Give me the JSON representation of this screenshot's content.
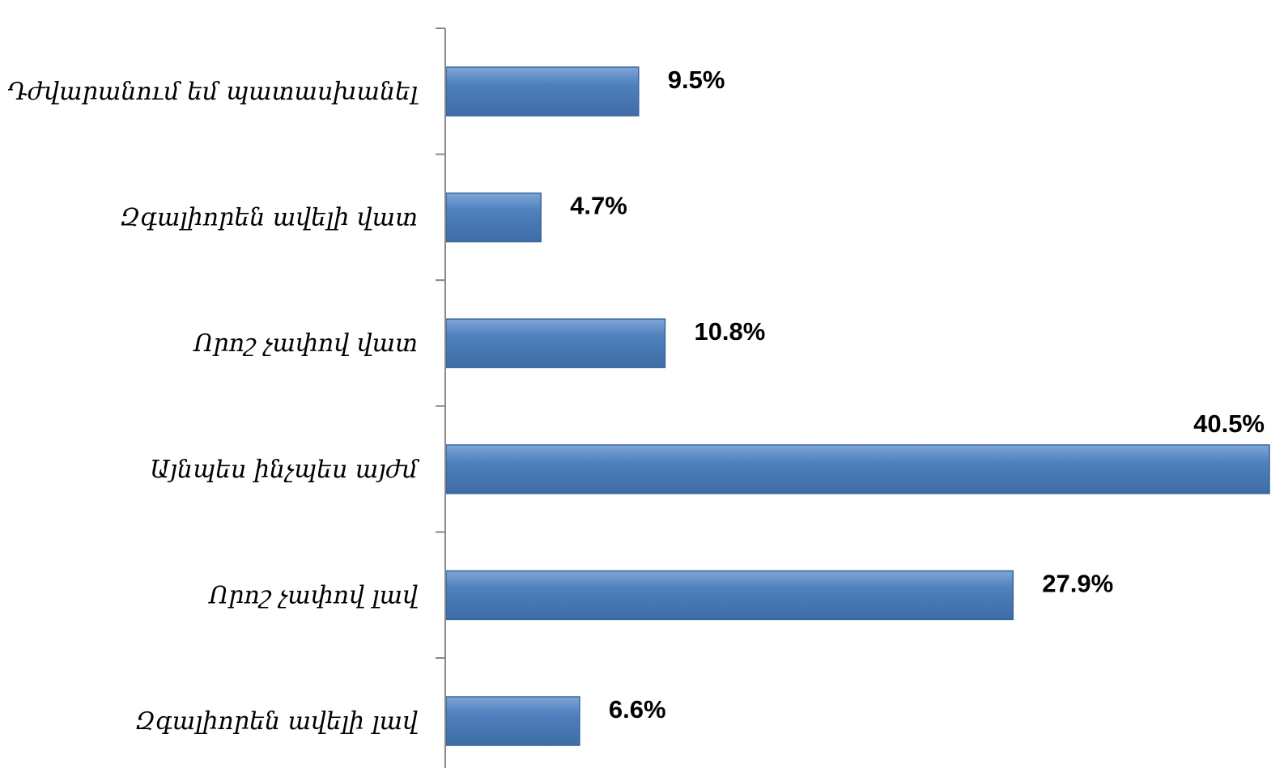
{
  "chart_data": {
    "type": "bar",
    "orientation": "horizontal",
    "categories": [
      "Դժվարանում եմ պատասխանել",
      "Զգալիորեն ավելի վատ",
      "Որոշ չափով վատ",
      "Այնպես ինչպես այժմ",
      "Որոշ չափով լավ",
      "Զգալիորեն ավելի լավ"
    ],
    "values": [
      9.5,
      4.7,
      10.8,
      40.5,
      27.9,
      6.6
    ],
    "data_labels": [
      "9.5%",
      "4.7%",
      "10.8%",
      "40.5%",
      "27.9%",
      "6.6%"
    ],
    "xlim": [
      0,
      40.5
    ],
    "bar_color": "#4F81BD",
    "bar_edge_color": "#3A6598",
    "grid": false,
    "legend": "none"
  }
}
